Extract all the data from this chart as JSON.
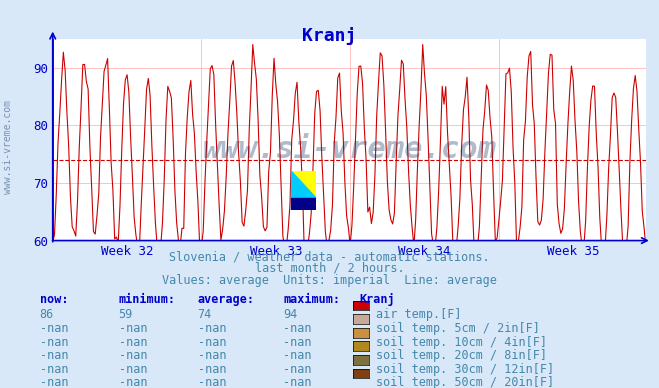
{
  "title": "Kranj",
  "title_color": "#0000cc",
  "bg_color": "#d8e8f8",
  "plot_bg_color": "#ffffff",
  "grid_color_h": "#ffaaaa",
  "grid_color_v": "#ffaaaa",
  "line_color": "#cc0000",
  "avg_line_color": "#cc0000",
  "avg_line_value": 74,
  "ylim": [
    60,
    95
  ],
  "yticks": [
    60,
    70,
    80,
    90
  ],
  "xlabel_weeks": [
    "Week 32",
    "Week 33",
    "Week 34",
    "Week 35"
  ],
  "axis_color": "#0000cc",
  "tick_color": "#0000cc",
  "watermark": "www.si-vreme.com",
  "watermark_color": "#1a3a6a",
  "subtitle1": "Slovenia / weather data - automatic stations.",
  "subtitle2": "last month / 2 hours.",
  "subtitle3": "Values: average  Units: imperial  Line: average",
  "subtitle_color": "#4488aa",
  "table_header_color": "#0000cc",
  "table_value_color": "#4488aa",
  "legend_items": [
    {
      "label": "air temp.[F]",
      "color": "#cc0000"
    },
    {
      "label": "soil temp. 5cm / 2in[F]",
      "color": "#c8a898"
    },
    {
      "label": "soil temp. 10cm / 4in[F]",
      "color": "#c89040"
    },
    {
      "label": "soil temp. 20cm / 8in[F]",
      "color": "#b08820"
    },
    {
      "label": "soil temp. 30cm / 12in[F]",
      "color": "#807040"
    },
    {
      "label": "soil temp. 50cm / 20in[F]",
      "color": "#804010"
    }
  ],
  "table_now": [
    "86",
    "-nan",
    "-nan",
    "-nan",
    "-nan",
    "-nan"
  ],
  "table_min": [
    "59",
    "-nan",
    "-nan",
    "-nan",
    "-nan",
    "-nan"
  ],
  "table_avg": [
    "74",
    "-nan",
    "-nan",
    "-nan",
    "-nan",
    "-nan"
  ],
  "table_max": [
    "94",
    "-nan",
    "-nan",
    "-nan",
    "-nan",
    "-nan"
  ],
  "num_points": 336
}
